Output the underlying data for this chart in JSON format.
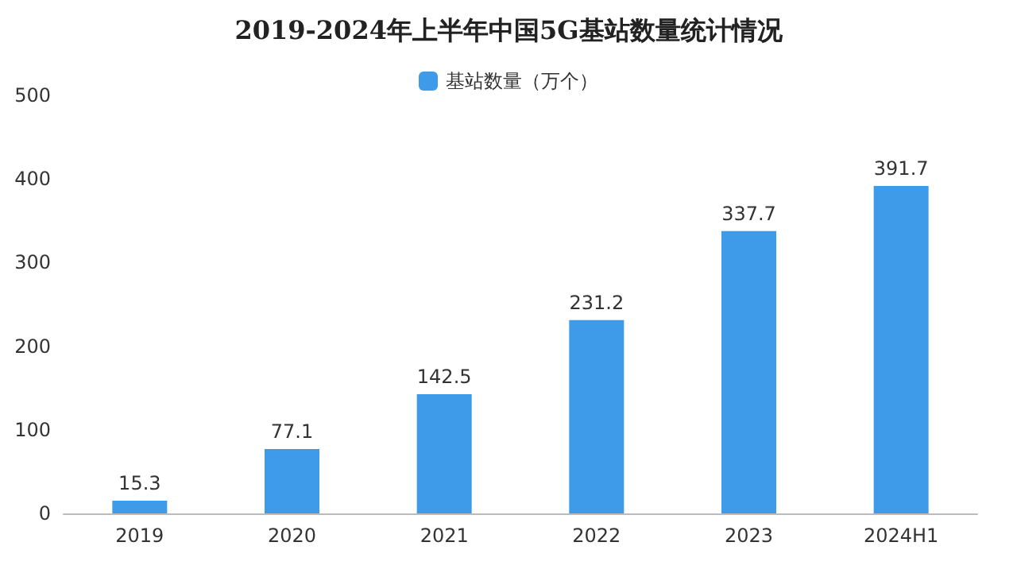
{
  "chart_data": {
    "type": "bar",
    "title": "2019-2024年上半年中国5G基站数量统计情况",
    "categories": [
      "2019",
      "2020",
      "2021",
      "2022",
      "2023",
      "2024H1"
    ],
    "series": [
      {
        "name": "基站数量（万个）",
        "color": "#3d9be9",
        "values": [
          15.3,
          77.1,
          142.5,
          231.2,
          337.7,
          391.7
        ]
      }
    ],
    "ylim": [
      0,
      500
    ],
    "yticks": [
      0,
      100,
      200,
      300,
      400,
      500
    ],
    "grid": false,
    "legend": "top",
    "data_labels": true
  }
}
